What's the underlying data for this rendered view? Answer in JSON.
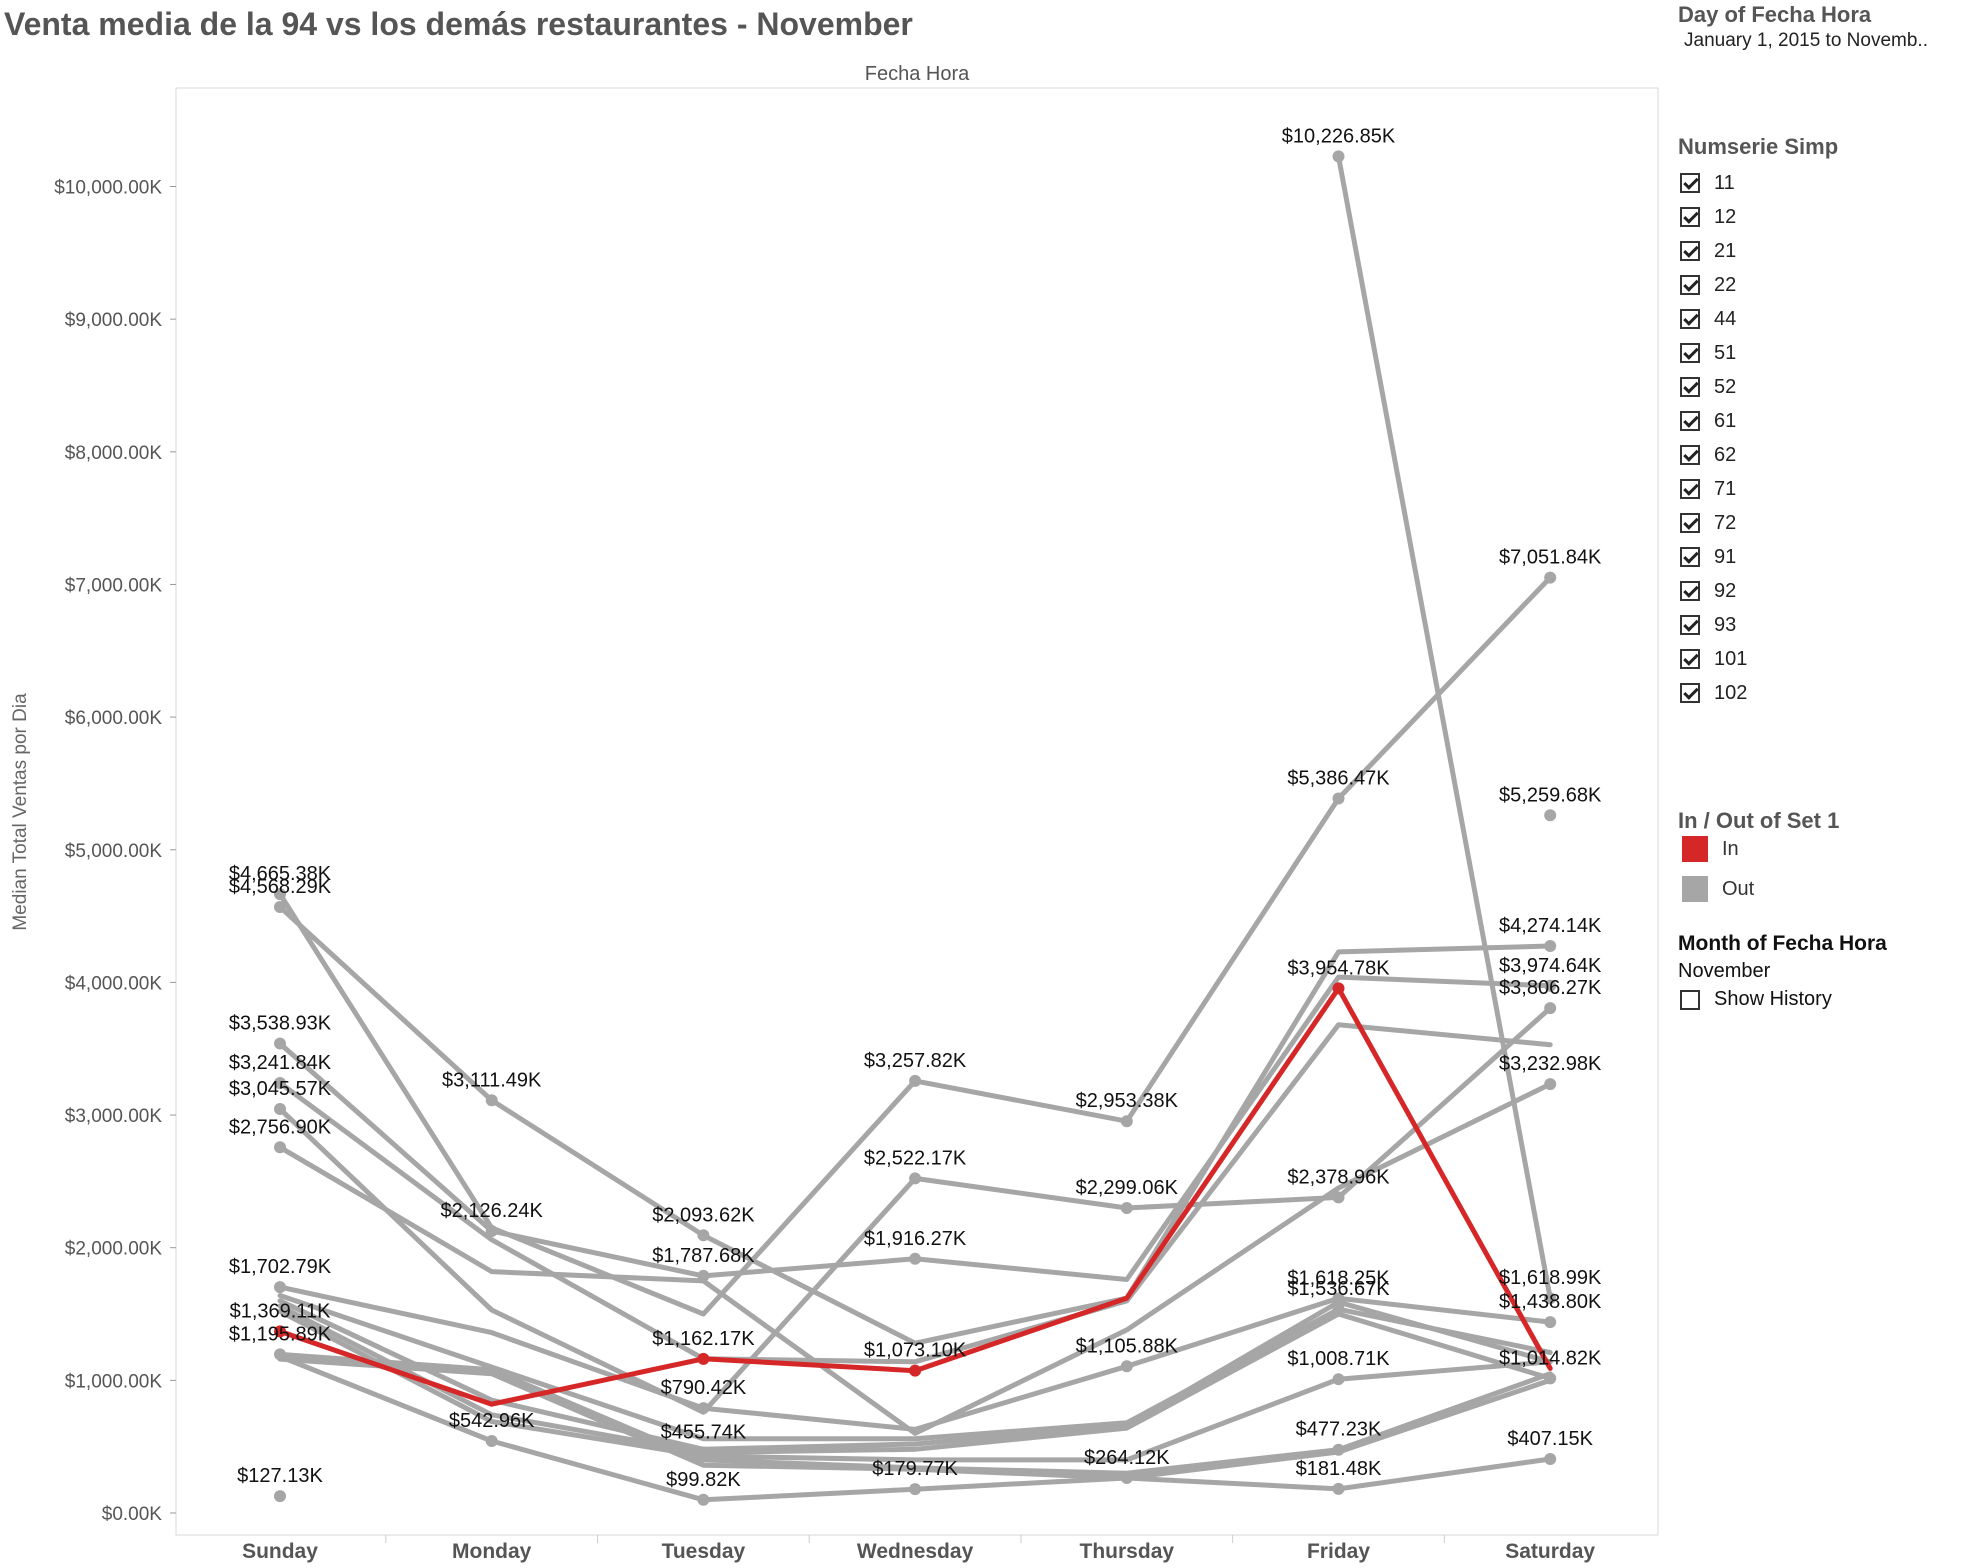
{
  "title": "Venta media de la 94 vs los demás restaurantes - November",
  "filter": {
    "title": "Day of Fecha Hora",
    "range": "January 1, 2015 to Novemb.."
  },
  "numserie": {
    "title": "Numserie Simp",
    "items": [
      "11",
      "12",
      "21",
      "22",
      "44",
      "51",
      "52",
      "61",
      "62",
      "71",
      "72",
      "91",
      "92",
      "93",
      "101",
      "102"
    ]
  },
  "set_legend": {
    "title": "In / Out of Set 1",
    "items": [
      {
        "label": "In",
        "color": "#d62728"
      },
      {
        "label": "Out",
        "color": "#a6a6a6"
      }
    ]
  },
  "month": {
    "title": "Month of Fecha Hora",
    "value": "November",
    "history_label": "Show History"
  },
  "chart_data": {
    "type": "line",
    "header": "Fecha Hora",
    "ylabel": "Median Total Ventas por Dia",
    "ylim": [
      0,
      10600
    ],
    "yticks": [
      0,
      1000,
      2000,
      3000,
      4000,
      5000,
      6000,
      7000,
      8000,
      9000,
      10000
    ],
    "ytick_labels": [
      "$0.00K",
      "$1,000.00K",
      "$2,000.00K",
      "$3,000.00K",
      "$4,000.00K",
      "$5,000.00K",
      "$6,000.00K",
      "$7,000.00K",
      "$8,000.00K",
      "$9,000.00K",
      "$10,000.00K"
    ],
    "categories": [
      "Sunday",
      "Monday",
      "Tuesday",
      "Wednesday",
      "Thursday",
      "Friday",
      "Saturday"
    ],
    "colors": {
      "in": "#d62728",
      "out": "#a6a6a6"
    },
    "series": [
      {
        "set": "Out",
        "values": [
          4665.38,
          2150,
          1500,
          3257.82,
          2953.38,
          5386.47,
          7051.84
        ]
      },
      {
        "set": "Out",
        "values": [
          4568.29,
          3111.49,
          2093.62,
          1280,
          1620,
          4230,
          4274.14
        ]
      },
      {
        "set": "Out",
        "values": [
          3538.93,
          2126.24,
          1787.68,
          1916.27,
          1760,
          4040,
          3974.64
        ]
      },
      {
        "set": "Out",
        "values": [
          3241.84,
          2060,
          1162.17,
          1140,
          1600,
          3680,
          3530
        ]
      },
      {
        "set": "Out",
        "values": [
          3045.57,
          1530,
          760,
          2522.17,
          2299.06,
          2378.96,
          3806.27
        ]
      },
      {
        "set": "Out",
        "values": [
          2756.9,
          1820,
          1750,
          600,
          1380,
          2450,
          3232.98
        ]
      },
      {
        "set": "Out",
        "values": [
          1702.79,
          1360,
          790.42,
          630,
          1105.88,
          1618.25,
          1438.8
        ]
      },
      {
        "set": "Out",
        "values": [
          1640,
          1100,
          560,
          560,
          680,
          1536.67,
          1210
        ]
      },
      {
        "set": "Out",
        "values": [
          1600,
          850,
          480,
          520,
          660,
          1590,
          1140
        ]
      },
      {
        "set": "Out",
        "values": [
          1560,
          740,
          455.74,
          480,
          640,
          1500,
          1014.82
        ]
      },
      {
        "set": "Out",
        "values": [
          1520,
          690,
          430,
          400,
          400,
          1008.71,
          1140
        ]
      },
      {
        "set": "Out",
        "values": [
          1195.89,
          1080,
          400,
          340,
          300,
          477.23,
          1050
        ]
      },
      {
        "set": "Out",
        "values": [
          1180,
          542.96,
          99.82,
          179.77,
          264.12,
          460,
          1000
        ]
      },
      {
        "set": "Out",
        "values": [
          1160,
          1050,
          360,
          330,
          264.12,
          181.48,
          407.15
        ]
      },
      {
        "set": "Out",
        "values": [
          127.13,
          null,
          null,
          null,
          null,
          10226.85,
          1618.99
        ]
      },
      {
        "set": "In",
        "values": [
          1369.11,
          820,
          1162.17,
          1073.1,
          1620,
          3954.78,
          1090
        ]
      }
    ],
    "data_labels": [
      {
        "x": "Sunday",
        "value": 4665.38,
        "text": "$4,665.38K"
      },
      {
        "x": "Sunday",
        "value": 4568.29,
        "text": "$4,568.29K"
      },
      {
        "x": "Sunday",
        "value": 3538.93,
        "text": "$3,538.93K"
      },
      {
        "x": "Sunday",
        "value": 3241.84,
        "text": "$3,241.84K"
      },
      {
        "x": "Sunday",
        "value": 3045.57,
        "text": "$3,045.57K"
      },
      {
        "x": "Sunday",
        "value": 2756.9,
        "text": "$2,756.90K"
      },
      {
        "x": "Sunday",
        "value": 1702.79,
        "text": "$1,702.79K"
      },
      {
        "x": "Sunday",
        "value": 1369.11,
        "text": "$1,369.11K"
      },
      {
        "x": "Sunday",
        "value": 1195.89,
        "text": "$1,195.89K"
      },
      {
        "x": "Sunday",
        "value": 127.13,
        "text": "$127.13K"
      },
      {
        "x": "Monday",
        "value": 3111.49,
        "text": "$3,111.49K"
      },
      {
        "x": "Monday",
        "value": 2126.24,
        "text": "$2,126.24K"
      },
      {
        "x": "Monday",
        "value": 542.96,
        "text": "$542.96K"
      },
      {
        "x": "Tuesday",
        "value": 2093.62,
        "text": "$2,093.62K"
      },
      {
        "x": "Tuesday",
        "value": 1787.68,
        "text": "$1,787.68K"
      },
      {
        "x": "Tuesday",
        "value": 1162.17,
        "text": "$1,162.17K"
      },
      {
        "x": "Tuesday",
        "value": 790.42,
        "text": "$790.42K"
      },
      {
        "x": "Tuesday",
        "value": 455.74,
        "text": "$455.74K"
      },
      {
        "x": "Tuesday",
        "value": 99.82,
        "text": "$99.82K"
      },
      {
        "x": "Wednesday",
        "value": 3257.82,
        "text": "$3,257.82K"
      },
      {
        "x": "Wednesday",
        "value": 2522.17,
        "text": "$2,522.17K"
      },
      {
        "x": "Wednesday",
        "value": 1916.27,
        "text": "$1,916.27K"
      },
      {
        "x": "Wednesday",
        "value": 1073.1,
        "text": "$1,073.10K"
      },
      {
        "x": "Wednesday",
        "value": 179.77,
        "text": "$179.77K"
      },
      {
        "x": "Thursday",
        "value": 2953.38,
        "text": "$2,953.38K"
      },
      {
        "x": "Thursday",
        "value": 2299.06,
        "text": "$2,299.06K"
      },
      {
        "x": "Thursday",
        "value": 1105.88,
        "text": "$1,105.88K"
      },
      {
        "x": "Thursday",
        "value": 264.12,
        "text": "$264.12K"
      },
      {
        "x": "Friday",
        "value": 10226.85,
        "text": "$10,226.85K"
      },
      {
        "x": "Friday",
        "value": 5386.47,
        "text": "$5,386.47K"
      },
      {
        "x": "Friday",
        "value": 3954.78,
        "text": "$3,954.78K"
      },
      {
        "x": "Friday",
        "value": 2378.96,
        "text": "$2,378.96K"
      },
      {
        "x": "Friday",
        "value": 1618.25,
        "text": "$1,618.25K"
      },
      {
        "x": "Friday",
        "value": 1536.67,
        "text": "$1,536.67K"
      },
      {
        "x": "Friday",
        "value": 1008.71,
        "text": "$1,008.71K"
      },
      {
        "x": "Friday",
        "value": 477.23,
        "text": "$477.23K"
      },
      {
        "x": "Friday",
        "value": 181.48,
        "text": "$181.48K"
      },
      {
        "x": "Saturday",
        "value": 7051.84,
        "text": "$7,051.84K"
      },
      {
        "x": "Saturday",
        "value": 5259.68,
        "text": "$5,259.68K"
      },
      {
        "x": "Saturday",
        "value": 4274.14,
        "text": "$4,274.14K"
      },
      {
        "x": "Saturday",
        "value": 3974.64,
        "text": "$3,974.64K"
      },
      {
        "x": "Saturday",
        "value": 3806.27,
        "text": "$3,806.27K"
      },
      {
        "x": "Saturday",
        "value": 3232.98,
        "text": "$3,232.98K"
      },
      {
        "x": "Saturday",
        "value": 1618.99,
        "text": "$1,618.99K"
      },
      {
        "x": "Saturday",
        "value": 1438.8,
        "text": "$1,438.80K"
      },
      {
        "x": "Saturday",
        "value": 1014.82,
        "text": "$1,014.82K"
      },
      {
        "x": "Saturday",
        "value": 407.15,
        "text": "$407.15K"
      }
    ]
  }
}
